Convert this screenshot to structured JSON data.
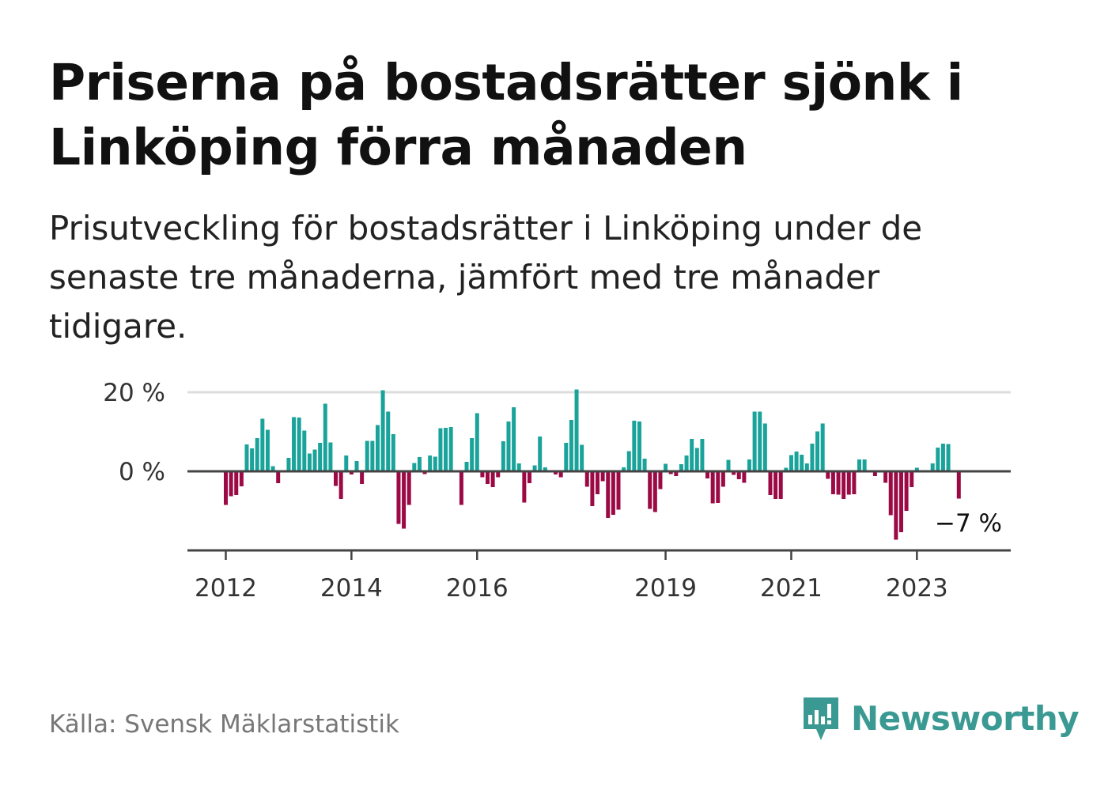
{
  "title": "Priserna på bostadsrätter sjönk i Linköping förra månaden",
  "subtitle": "Prisutveckling för bostadsrätter i Linköping under de senaste tre månaderna, jämfört med tre månader tidigare.",
  "source": "Källa: Svensk Mäklarstatistik",
  "brand": {
    "name": "Newsworthy",
    "icon": "newsworthy-logo-icon",
    "color": "#3a9a93"
  },
  "colors": {
    "positive": "#1aa39a",
    "negative": "#9c0a46",
    "gridline": "#dddddd",
    "axis": "#444444"
  },
  "chart_data": {
    "type": "bar",
    "title": "",
    "xlabel": "",
    "ylabel": "",
    "ylim": [
      -20,
      20
    ],
    "grid": true,
    "x_start": "2012-01",
    "x_end": "2023-12",
    "x_ticks": [
      "2012",
      "2014",
      "2016",
      "2019",
      "2021",
      "2023"
    ],
    "y_ticks": [
      "20 %",
      "0 %"
    ],
    "last_value_label": "−7 %",
    "values": [
      -8.5,
      -6.3,
      -6.0,
      -3.8,
      6.8,
      5.8,
      8.4,
      13.3,
      10.5,
      1.3,
      -3.0,
      0,
      3.4,
      13.7,
      13.6,
      10.3,
      4.5,
      5.5,
      7.2,
      17.1,
      7.3,
      -3.7,
      -7.0,
      4.0,
      -0.8,
      2.6,
      -3.2,
      7.7,
      7.7,
      11.7,
      20.5,
      15.1,
      9.4,
      -13.3,
      -14.5,
      -8.5,
      2.1,
      3.6,
      -0.7,
      4.0,
      3.7,
      10.9,
      11.0,
      11.2,
      0,
      -8.5,
      2.4,
      8.4,
      14.7,
      -1.5,
      -3.2,
      -4.0,
      -1.5,
      7.6,
      12.6,
      16.2,
      2.0,
      -7.9,
      -3.0,
      1.5,
      8.8,
      1.0,
      0,
      -0.8,
      -1.5,
      7.2,
      13.0,
      20.7,
      6.7,
      -3.9,
      -8.8,
      -5.8,
      -2.5,
      -11.8,
      -11.0,
      -9.7,
      1.0,
      5.1,
      12.8,
      12.6,
      3.2,
      -9.5,
      -10.3,
      -4.5,
      1.9,
      -0.7,
      -1.2,
      1.8,
      4.0,
      8.2,
      5.9,
      8.2,
      -1.8,
      -8.1,
      -8.0,
      -3.9,
      2.9,
      -0.9,
      -2.0,
      -2.9,
      3.0,
      15.1,
      15.1,
      12.1,
      -6.0,
      -7.0,
      -7.0,
      0.9,
      4.1,
      5.0,
      4.2,
      2.0,
      7.0,
      10.1,
      12.1,
      -1.9,
      -5.8,
      -5.9,
      -7.0,
      -5.9,
      -5.8,
      3.0,
      3.0,
      0,
      -1.2,
      0,
      -2.9,
      -11.1,
      -17.3,
      -15.4,
      -10.0,
      -4.0,
      0.9,
      0,
      0,
      2.0,
      6.0,
      7.0,
      6.9,
      0,
      -6.9
    ]
  }
}
